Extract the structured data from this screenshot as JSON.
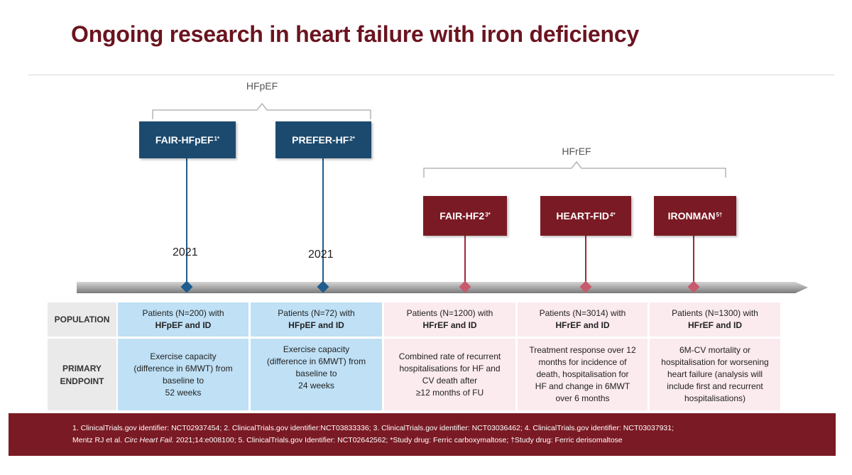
{
  "title": "Ongoing research in heart failure with iron deficiency",
  "groups": {
    "hfpef": "HFpEF",
    "hfref": "HFrEF"
  },
  "colors": {
    "hfpef_box": "#1c4a6e",
    "hfref_box": "#7a1a24",
    "hfpef_cell": "#bfe0f5",
    "hfref_cell": "#fbeaee",
    "title": "#6b1420"
  },
  "trials": [
    {
      "name": "FAIR-HFpEF",
      "sup": "1*",
      "year": "2021",
      "population_pre": "Patients (N=200) with",
      "population_bold": "HFpEF and ID",
      "endpoint": [
        "Exercise capacity",
        "(difference in 6MWT) from",
        "baseline to",
        "52 weeks"
      ]
    },
    {
      "name": "PREFER-HF",
      "sup": "2*",
      "year": "2021",
      "population_pre": "Patients (N=72) with",
      "population_bold": "HFpEF and ID",
      "endpoint": [
        "Exercise capacity",
        "(difference in 6MWT) from",
        "baseline to",
        "24 weeks"
      ]
    },
    {
      "name": "FAIR-HF2",
      "sup": "3*",
      "population_pre": "Patients (N=1200) with",
      "population_bold": "HFrEF and ID",
      "endpoint": [
        "Combined rate of recurrent",
        "hospitalisations for HF and",
        "CV death after",
        "≥12 months of FU"
      ]
    },
    {
      "name": "HEART-FID",
      "sup": "4*",
      "population_pre": "Patients (N=3014) with",
      "population_bold": "HFrEF and ID",
      "endpoint": [
        "Treatment response over 12",
        "months for incidence of",
        "death, hospitalisation for",
        "HF and change in 6MWT",
        "over 6 months"
      ]
    },
    {
      "name": "IRONMAN",
      "sup": "5†",
      "population_pre": "Patients (N=1300) with",
      "population_bold": "HFrEF and ID",
      "endpoint": [
        "6M-CV mortality or",
        "hospitalisation for worsening",
        "heart failure (analysis will",
        "include first and recurrent",
        "hospitalisations)"
      ]
    }
  ],
  "rows": {
    "population": "POPULATION",
    "endpoint_line1": "PRIMARY",
    "endpoint_line2": "ENDPOINT"
  },
  "footer": {
    "line1": "1. ClinicalTrials.gov identifier: NCT02937454; 2. ClinicalTrials.gov identifier:NCT03833336; 3. ClinicalTrials.gov identifier: NCT03036462; 4. ClinicalTrials.gov identifier: NCT03037931;",
    "line2_pre": "Mentz RJ et al. ",
    "line2_journal": "Circ Heart Fail.",
    "line2_post": " 2021;14:e008100; 5. ClinicalTrials.gov Identifier: NCT02642562; *Study drug: Ferric carboxymaltose; †Study drug: Ferric derisomaltose"
  }
}
